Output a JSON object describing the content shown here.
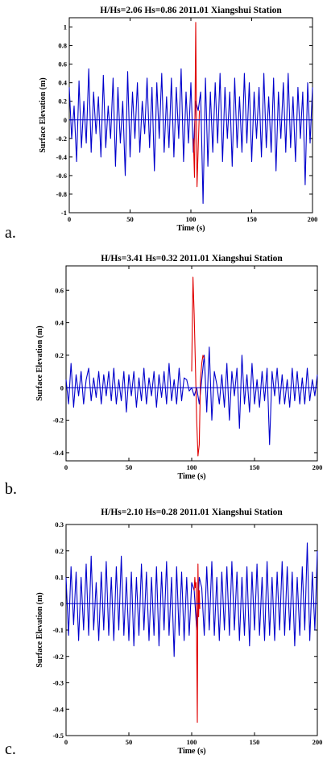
{
  "panels": [
    {
      "letter": "a."
    },
    {
      "letter": "b."
    },
    {
      "letter": "c."
    }
  ],
  "chart_data": [
    {
      "type": "line",
      "title": "H/Hs=2.06 Hs=0.86 2011.01 Xiangshui Station",
      "xlabel": "Time (s)",
      "ylabel": "Surface Elevation (m)",
      "xlim": [
        0,
        200
      ],
      "ylim": [
        -1,
        1.1
      ],
      "xticks": [
        0,
        50,
        100,
        150,
        200
      ],
      "yticks": [
        -1,
        -0.8,
        -0.6,
        -0.4,
        -0.2,
        0,
        0.2,
        0.4,
        0.6,
        0.8,
        1
      ],
      "ytick_labels": [
        "-1",
        "-0.8",
        "-0.6",
        "-0.4",
        "-0.2",
        "0",
        "0.2",
        "0.4",
        "0.6",
        "0.8",
        "1"
      ],
      "zero_line": true,
      "colors": {
        "series": "#0000cc",
        "highlight": "#e00000"
      },
      "series": [
        {
          "role": "background",
          "x": [
            0,
            2,
            4,
            6,
            8,
            10,
            12,
            14,
            16,
            18,
            20,
            22,
            24,
            26,
            28,
            30,
            32,
            34,
            36,
            38,
            40,
            42,
            44,
            46,
            48,
            50,
            52,
            54,
            56,
            58,
            60,
            62,
            64,
            66,
            68,
            70,
            72,
            74,
            76,
            78,
            80,
            82,
            84,
            86,
            88,
            90,
            92,
            94,
            96,
            98,
            100,
            102,
            104,
            106,
            108,
            110,
            112,
            114,
            116,
            118,
            120,
            122,
            124,
            126,
            128,
            130,
            132,
            134,
            136,
            138,
            140,
            142,
            144,
            146,
            148,
            150,
            152,
            154,
            156,
            158,
            160,
            162,
            164,
            166,
            168,
            170,
            172,
            174,
            176,
            178,
            180,
            182,
            184,
            186,
            188,
            190,
            192,
            194,
            196,
            198,
            200
          ],
          "y": [
            0.35,
            -0.2,
            0.15,
            -0.45,
            0.42,
            -0.3,
            0.2,
            -0.25,
            0.55,
            -0.35,
            0.3,
            -0.15,
            0.25,
            -0.4,
            0.48,
            -0.3,
            0.15,
            -0.2,
            0.45,
            -0.5,
            0.35,
            -0.25,
            0.2,
            -0.6,
            0.52,
            -0.4,
            0.3,
            -0.2,
            0.4,
            -0.35,
            0.2,
            -0.15,
            0.45,
            -0.3,
            0.35,
            -0.55,
            0.4,
            -0.2,
            0.5,
            -0.35,
            0.25,
            -0.3,
            0.45,
            -0.4,
            0.35,
            -0.2,
            0.55,
            -0.45,
            0.3,
            -0.25,
            0.4,
            -0.35,
            0.2,
            0.1,
            0.3,
            -0.9,
            0.45,
            -0.5,
            0.3,
            -0.35,
            0.4,
            -0.25,
            0.5,
            -0.45,
            0.35,
            -0.2,
            0.3,
            -0.5,
            0.45,
            -0.3,
            0.25,
            -0.35,
            0.5,
            -0.25,
            0.4,
            -0.45,
            0.3,
            -0.2,
            0.35,
            -0.4,
            0.5,
            -0.3,
            0.25,
            -0.35,
            0.45,
            -0.55,
            0.3,
            -0.2,
            0.4,
            -0.35,
            0.5,
            -0.3,
            0.25,
            -0.45,
            0.35,
            -0.2,
            0.3,
            -0.7,
            0.4,
            -0.25,
            0.35
          ]
        },
        {
          "role": "highlight",
          "x": [
            102,
            103,
            104,
            105,
            106,
            107
          ],
          "y": [
            -0.2,
            -0.62,
            1.05,
            -0.72,
            -0.3,
            0.1
          ]
        }
      ]
    },
    {
      "type": "line",
      "title": "H/Hs=3.41 Hs=0.32 2011.01 Xiangshui Station",
      "xlabel": "Time (s)",
      "ylabel": "Surface Elevation (m)",
      "xlim": [
        0,
        200
      ],
      "ylim": [
        -0.45,
        0.75
      ],
      "xticks": [
        0,
        50,
        100,
        150,
        200
      ],
      "yticks": [
        -0.4,
        -0.2,
        0,
        0.2,
        0.4,
        0.6
      ],
      "ytick_labels": [
        "-0.4",
        "-0.2",
        "0",
        "0.2",
        "0.4",
        "0.6"
      ],
      "zero_line": true,
      "colors": {
        "series": "#0000cc",
        "highlight": "#e00000"
      },
      "series": [
        {
          "role": "background",
          "x": [
            0,
            2,
            4,
            6,
            8,
            10,
            12,
            14,
            16,
            18,
            20,
            22,
            24,
            26,
            28,
            30,
            32,
            34,
            36,
            38,
            40,
            42,
            44,
            46,
            48,
            50,
            52,
            54,
            56,
            58,
            60,
            62,
            64,
            66,
            68,
            70,
            72,
            74,
            76,
            78,
            80,
            82,
            84,
            86,
            88,
            90,
            92,
            94,
            96,
            98,
            100,
            102,
            104,
            106,
            108,
            110,
            112,
            114,
            116,
            118,
            120,
            122,
            124,
            126,
            128,
            130,
            132,
            134,
            136,
            138,
            140,
            142,
            144,
            146,
            148,
            150,
            152,
            154,
            156,
            158,
            160,
            162,
            164,
            166,
            168,
            170,
            172,
            174,
            176,
            178,
            180,
            182,
            184,
            186,
            188,
            190,
            192,
            194,
            196,
            198,
            200
          ],
          "y": [
            0.05,
            -0.1,
            0.15,
            -0.12,
            0.08,
            -0.05,
            0.1,
            -0.1,
            0.05,
            0.12,
            -0.08,
            0.06,
            -0.06,
            0.1,
            -0.1,
            0.08,
            -0.05,
            0.1,
            -0.08,
            0.12,
            -0.1,
            0.05,
            -0.08,
            0.1,
            -0.15,
            0.08,
            -0.05,
            0.1,
            -0.12,
            0.06,
            -0.08,
            0.12,
            -0.1,
            0.06,
            -0.05,
            0.1,
            -0.12,
            0.08,
            -0.06,
            0.1,
            -0.1,
            0.15,
            -0.08,
            0.05,
            -0.1,
            0.12,
            -0.08,
            0.06,
            0.05,
            -0.02,
            0.0,
            -0.05,
            0.0,
            -0.1,
            0.05,
            0.2,
            -0.15,
            0.25,
            -0.2,
            0.1,
            0.02,
            -0.1,
            0.08,
            -0.12,
            0.15,
            -0.2,
            0.1,
            -0.05,
            0.12,
            -0.25,
            0.2,
            -0.1,
            0.08,
            -0.15,
            0.15,
            -0.1,
            0.05,
            -0.12,
            0.1,
            -0.08,
            0.12,
            -0.35,
            0.1,
            -0.05,
            0.12,
            -0.1,
            0.08,
            -0.1,
            0.05,
            -0.12,
            0.12,
            -0.08,
            0.1,
            -0.1,
            0.06,
            -0.1,
            0.12,
            -0.08,
            0.05,
            -0.05,
            0.08
          ]
        },
        {
          "role": "highlight",
          "x": [
            100,
            101,
            102,
            103,
            104,
            105,
            106,
            107,
            108,
            109,
            110
          ],
          "y": [
            0.1,
            0.68,
            0.45,
            0.12,
            -0.2,
            -0.42,
            -0.35,
            0.05,
            0.15,
            0.2,
            0.18
          ]
        }
      ]
    },
    {
      "type": "line",
      "title": "H/Hs=2.10 Hs=0.28 2011.01 Xiangshui Station",
      "xlabel": "Time (s)",
      "ylabel": "Surface Elevation (m)",
      "xlim": [
        0,
        200
      ],
      "ylim": [
        -0.5,
        0.3
      ],
      "xticks": [
        0,
        50,
        100,
        150,
        200
      ],
      "yticks": [
        -0.5,
        -0.4,
        -0.3,
        -0.2,
        -0.1,
        0,
        0.1,
        0.2,
        0.3
      ],
      "ytick_labels": [
        "-0.5",
        "-0.4",
        "-0.3",
        "-0.2",
        "-0.1",
        "0",
        "0.1",
        "0.2",
        "0.3"
      ],
      "zero_line": true,
      "colors": {
        "series": "#0000cc",
        "highlight": "#e00000"
      },
      "series": [
        {
          "role": "background",
          "x": [
            0,
            2,
            4,
            6,
            8,
            10,
            12,
            14,
            16,
            18,
            20,
            22,
            24,
            26,
            28,
            30,
            32,
            34,
            36,
            38,
            40,
            42,
            44,
            46,
            48,
            50,
            52,
            54,
            56,
            58,
            60,
            62,
            64,
            66,
            68,
            70,
            72,
            74,
            76,
            78,
            80,
            82,
            84,
            86,
            88,
            90,
            92,
            94,
            96,
            98,
            100,
            102,
            104,
            106,
            108,
            110,
            112,
            114,
            116,
            118,
            120,
            122,
            124,
            126,
            128,
            130,
            132,
            134,
            136,
            138,
            140,
            142,
            144,
            146,
            148,
            150,
            152,
            154,
            156,
            158,
            160,
            162,
            164,
            166,
            168,
            170,
            172,
            174,
            176,
            178,
            180,
            182,
            184,
            186,
            188,
            190,
            192,
            194,
            196,
            198,
            200
          ],
          "y": [
            0.1,
            -0.12,
            0.14,
            -0.08,
            0.12,
            -0.14,
            0.1,
            -0.1,
            0.15,
            -0.12,
            0.18,
            -0.1,
            0.08,
            -0.14,
            0.12,
            -0.1,
            0.16,
            -0.12,
            0.1,
            -0.14,
            0.14,
            -0.1,
            0.18,
            -0.12,
            0.1,
            -0.14,
            0.12,
            -0.16,
            0.1,
            -0.12,
            0.15,
            -0.1,
            0.12,
            -0.14,
            0.1,
            -0.12,
            0.14,
            -0.16,
            0.12,
            -0.1,
            0.16,
            -0.12,
            0.1,
            -0.2,
            0.14,
            -0.12,
            0.12,
            -0.14,
            0.1,
            -0.12,
            0.08,
            0.05,
            -0.1,
            0.1,
            0.06,
            -0.12,
            0.14,
            -0.1,
            0.16,
            -0.12,
            0.1,
            -0.14,
            0.12,
            -0.1,
            0.14,
            -0.12,
            0.16,
            -0.1,
            0.12,
            -0.14,
            0.1,
            -0.12,
            0.14,
            -0.16,
            0.12,
            -0.1,
            0.15,
            -0.12,
            0.1,
            -0.14,
            0.16,
            -0.12,
            0.1,
            -0.14,
            0.12,
            -0.1,
            0.16,
            -0.12,
            0.14,
            -0.1,
            0.12,
            -0.16,
            0.1,
            -0.12,
            0.14,
            -0.1,
            0.23,
            -0.14,
            0.12,
            -0.1,
            0.2
          ]
        },
        {
          "role": "highlight",
          "x": [
            102,
            102.5,
            103,
            103.5,
            104,
            104.5,
            105,
            105.5,
            106,
            106.5
          ],
          "y": [
            0.05,
            0.1,
            0.06,
            0.08,
            -0.15,
            -0.45,
            0.15,
            -0.05,
            0.05,
            -0.02
          ]
        }
      ]
    }
  ]
}
